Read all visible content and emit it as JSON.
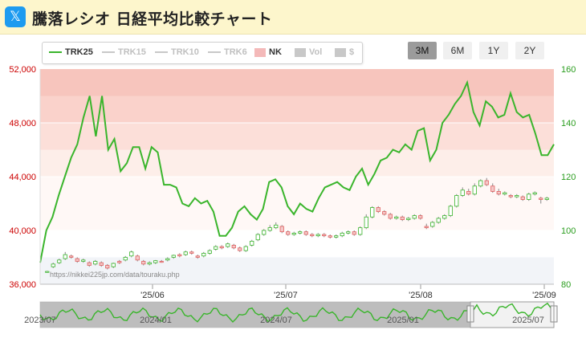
{
  "header": {
    "icon": "x-logo-icon",
    "icon_glyph": "𝕏",
    "title": "騰落レシオ 日経平均比較チャート"
  },
  "legend": [
    {
      "label": "TRK25",
      "kind": "line",
      "color": "#3ab52c",
      "active": true
    },
    {
      "label": "TRK15",
      "kind": "line",
      "color": "#c8c8c8",
      "active": false
    },
    {
      "label": "TRK10",
      "kind": "line",
      "color": "#c8c8c8",
      "active": false
    },
    {
      "label": "TRK6",
      "kind": "line",
      "color": "#c8c8c8",
      "active": false
    },
    {
      "label": "NK",
      "kind": "swatch",
      "color": "#f4b9b9",
      "active": true
    },
    {
      "label": "Vol",
      "kind": "swatch",
      "color": "#c8c8c8",
      "active": false
    },
    {
      "label": "$",
      "kind": "swatch",
      "color": "#c8c8c8",
      "active": false
    }
  ],
  "range_buttons": [
    {
      "label": "3M",
      "active": true
    },
    {
      "label": "6M",
      "active": false
    },
    {
      "label": "1Y",
      "active": false
    },
    {
      "label": "2Y",
      "active": false
    }
  ],
  "watermark": "https://nikkei225jp.com/data/touraku.php",
  "chart_data": {
    "type": "line",
    "left_axis": {
      "min": 36000,
      "max": 52000,
      "ticks": [
        "36,000",
        "40,000",
        "44,000",
        "48,000",
        "52,000"
      ],
      "color": "#cc0000"
    },
    "right_axis": {
      "min": 80,
      "max": 160,
      "ticks": [
        "80",
        "100",
        "120",
        "140",
        "160"
      ],
      "color": "#2a9d1e"
    },
    "x_ticks": [
      "'25/06",
      "'25/07",
      "'25/08",
      "'25/09"
    ],
    "bands_left": [
      {
        "from": 50000,
        "to": 52000,
        "color": "#f7c5bd"
      },
      {
        "from": 48000,
        "to": 50000,
        "color": "#fad2cb"
      },
      {
        "from": 46000,
        "to": 48000,
        "color": "#fcdfd9"
      },
      {
        "from": 44000,
        "to": 46000,
        "color": "#fdeee9"
      },
      {
        "from": 40000,
        "to": 44000,
        "color": "#fff8f6"
      },
      {
        "from": 36000,
        "to": 38000,
        "color": "#f2f4f8"
      }
    ],
    "series": [
      {
        "name": "TRK25",
        "axis": "right",
        "color": "#3ab52c",
        "values": [
          88,
          100,
          105,
          113,
          120,
          127,
          132,
          142,
          150,
          135,
          150,
          130,
          134,
          122,
          125,
          131,
          131,
          123,
          131,
          129,
          117,
          117,
          116,
          110,
          109,
          112,
          110,
          111,
          107,
          98,
          98,
          101,
          107,
          109,
          106,
          104,
          108,
          118,
          119,
          116,
          109,
          106,
          110,
          108,
          107,
          112,
          116,
          117,
          118,
          116,
          115,
          120,
          123,
          117,
          121,
          126,
          127,
          130,
          129,
          132,
          130,
          137,
          138,
          126,
          130,
          140,
          143,
          147,
          150,
          155,
          144,
          139,
          148,
          146,
          142,
          143,
          151,
          144,
          142,
          143,
          136,
          128,
          128,
          132
        ]
      },
      {
        "name": "NK",
        "axis": "left",
        "kind": "candlestick",
        "values": [
          [
            36900,
            36950,
            36850,
            37000
          ],
          [
            37300,
            37500,
            37200,
            37600
          ],
          [
            37600,
            37800,
            37500,
            37900
          ],
          [
            37900,
            38200,
            37800,
            38400
          ],
          [
            38100,
            38000,
            37900,
            38200
          ],
          [
            37900,
            37700,
            37600,
            38000
          ],
          [
            37700,
            37800,
            37600,
            37900
          ],
          [
            37600,
            37400,
            37300,
            37700
          ],
          [
            37500,
            37700,
            37400,
            37800
          ],
          [
            37600,
            37400,
            37300,
            37700
          ],
          [
            37400,
            37200,
            37100,
            37500
          ],
          [
            37300,
            37550,
            37200,
            37600
          ],
          [
            37700,
            37600,
            37500,
            37800
          ],
          [
            37800,
            38000,
            37700,
            38100
          ],
          [
            38100,
            38400,
            38000,
            38500
          ],
          [
            38100,
            37800,
            37700,
            38200
          ],
          [
            37700,
            37500,
            37400,
            37800
          ],
          [
            37500,
            37600,
            37400,
            37700
          ],
          [
            37600,
            37750,
            37500,
            37800
          ],
          [
            37700,
            37650,
            37600,
            37800
          ],
          [
            37800,
            37900,
            37700,
            38000
          ],
          [
            38000,
            38150,
            37900,
            38200
          ],
          [
            38200,
            38100,
            38000,
            38300
          ],
          [
            38200,
            38400,
            38100,
            38500
          ],
          [
            38400,
            38300,
            38200,
            38500
          ],
          [
            38100,
            38000,
            37900,
            38200
          ],
          [
            38100,
            38300,
            38000,
            38400
          ],
          [
            38300,
            38500,
            38200,
            38600
          ],
          [
            38600,
            38800,
            38500,
            38900
          ],
          [
            38800,
            38700,
            38600,
            38900
          ],
          [
            38800,
            39000,
            38700,
            39100
          ],
          [
            38900,
            38700,
            38600,
            39000
          ],
          [
            38700,
            38500,
            38400,
            38800
          ],
          [
            38500,
            38800,
            38400,
            38900
          ],
          [
            38900,
            39200,
            38800,
            39300
          ],
          [
            39300,
            39700,
            39200,
            39800
          ],
          [
            39700,
            40000,
            39600,
            40100
          ],
          [
            40000,
            40200,
            39900,
            40400
          ],
          [
            40200,
            40400,
            40100,
            40600
          ],
          [
            40300,
            39900,
            39800,
            40400
          ],
          [
            39900,
            39700,
            39600,
            40000
          ],
          [
            39700,
            39800,
            39600,
            39900
          ],
          [
            39800,
            39900,
            39700,
            40000
          ],
          [
            39900,
            39700,
            39600,
            40000
          ],
          [
            39700,
            39600,
            39500,
            39800
          ],
          [
            39600,
            39700,
            39500,
            39800
          ],
          [
            39700,
            39600,
            39500,
            39800
          ],
          [
            39600,
            39500,
            39400,
            39700
          ],
          [
            39500,
            39600,
            39400,
            39700
          ],
          [
            39600,
            39800,
            39500,
            39900
          ],
          [
            39800,
            39900,
            39700,
            40000
          ],
          [
            39900,
            39700,
            39600,
            40000
          ],
          [
            39700,
            40200,
            39600,
            40300
          ],
          [
            40200,
            41000,
            40100,
            41200
          ],
          [
            41000,
            41700,
            40900,
            41800
          ],
          [
            41700,
            41400,
            41300,
            41800
          ],
          [
            41400,
            41200,
            41100,
            41500
          ],
          [
            41200,
            40900,
            40800,
            41300
          ],
          [
            40900,
            41000,
            40800,
            41100
          ],
          [
            41000,
            40800,
            40700,
            41100
          ],
          [
            40800,
            40900,
            40700,
            41000
          ],
          [
            40900,
            41100,
            40800,
            41200
          ],
          [
            41100,
            40900,
            40800,
            41200
          ],
          [
            40300,
            40200,
            40100,
            40500
          ],
          [
            40300,
            40600,
            40200,
            40700
          ],
          [
            40600,
            40900,
            40500,
            41000
          ],
          [
            40900,
            41100,
            40800,
            41200
          ],
          [
            41100,
            41800,
            41000,
            41900
          ],
          [
            41800,
            42600,
            41700,
            42700
          ],
          [
            42600,
            43000,
            42500,
            43200
          ],
          [
            42900,
            42700,
            42600,
            43100
          ],
          [
            42700,
            43300,
            42600,
            43500
          ],
          [
            43300,
            43700,
            43200,
            43800
          ],
          [
            43700,
            43400,
            43300,
            43900
          ],
          [
            43300,
            42900,
            42800,
            43500
          ],
          [
            42900,
            42700,
            42600,
            43100
          ],
          [
            42700,
            42800,
            42600,
            42900
          ],
          [
            42600,
            42500,
            42400,
            42700
          ],
          [
            42500,
            42600,
            42400,
            42700
          ],
          [
            42500,
            42300,
            42200,
            42600
          ],
          [
            42300,
            42700,
            42200,
            42800
          ],
          [
            42700,
            42800,
            42600,
            42900
          ],
          [
            42400,
            42300,
            42000,
            42500
          ],
          [
            42300,
            42400,
            42200,
            42500
          ]
        ]
      }
    ]
  },
  "navigator": {
    "labels": [
      "2023/07",
      "2024/01",
      "2024/07",
      "2025/01",
      "2025/07"
    ]
  }
}
